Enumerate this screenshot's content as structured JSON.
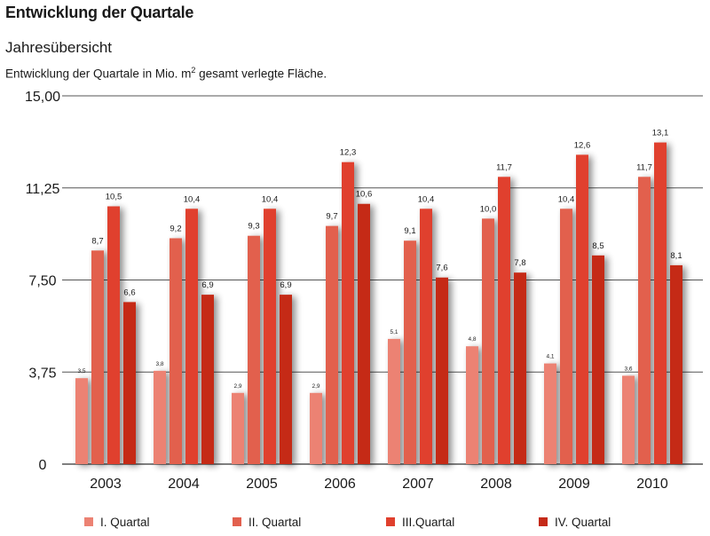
{
  "header": {
    "title": "Entwicklung der Quartale",
    "subtitle": "Jahresübersicht",
    "note_prefix": "Entwicklung der Quartale in Mio. m",
    "note_sup": "2",
    "note_suffix": " gesamt verlegte Fläche."
  },
  "chart_data": {
    "type": "bar",
    "title": "Entwicklung der Quartale",
    "subtitle": "Jahresübersicht",
    "xlabel": "",
    "ylabel": "",
    "ylim": [
      0,
      15
    ],
    "yticks": [
      "0",
      "3,75",
      "7,50",
      "11,25",
      "15,00"
    ],
    "grid": true,
    "legend_position": "bottom",
    "categories": [
      "2003",
      "2004",
      "2005",
      "2006",
      "2007",
      "2008",
      "2009",
      "2010"
    ],
    "series": [
      {
        "name": "I. Quartal",
        "color": "#ec8273",
        "values": [
          3.5,
          3.8,
          2.9,
          2.9,
          5.1,
          4.8,
          4.1,
          3.6
        ],
        "labels": [
          "3,5",
          "3,8",
          "2,9",
          "2,9",
          "5,1",
          "4,8",
          "4,1",
          "3,6"
        ]
      },
      {
        "name": "II. Quartal",
        "color": "#e2604e",
        "values": [
          8.7,
          9.2,
          9.3,
          9.7,
          9.1,
          10.0,
          10.4,
          11.7
        ],
        "labels": [
          "8,7",
          "9,2",
          "9,3",
          "9,7",
          "9,1",
          "10,0",
          "10,4",
          "11,7"
        ]
      },
      {
        "name": "III.Quartal",
        "color": "#e0402d",
        "values": [
          10.5,
          10.4,
          10.4,
          12.3,
          10.4,
          11.7,
          12.6,
          13.1
        ],
        "labels": [
          "10,5",
          "10,4",
          "10,4",
          "12,3",
          "10,4",
          "11,7",
          "12,6",
          "13,1"
        ]
      },
      {
        "name": "IV. Quartal",
        "color": "#c52a18",
        "values": [
          6.6,
          6.9,
          6.9,
          10.6,
          7.6,
          7.8,
          8.5,
          8.1
        ],
        "labels": [
          "6,6",
          "6,9",
          "6,9",
          "10,6",
          "7,6",
          "7,8",
          "8,5",
          "8,1"
        ]
      }
    ]
  }
}
